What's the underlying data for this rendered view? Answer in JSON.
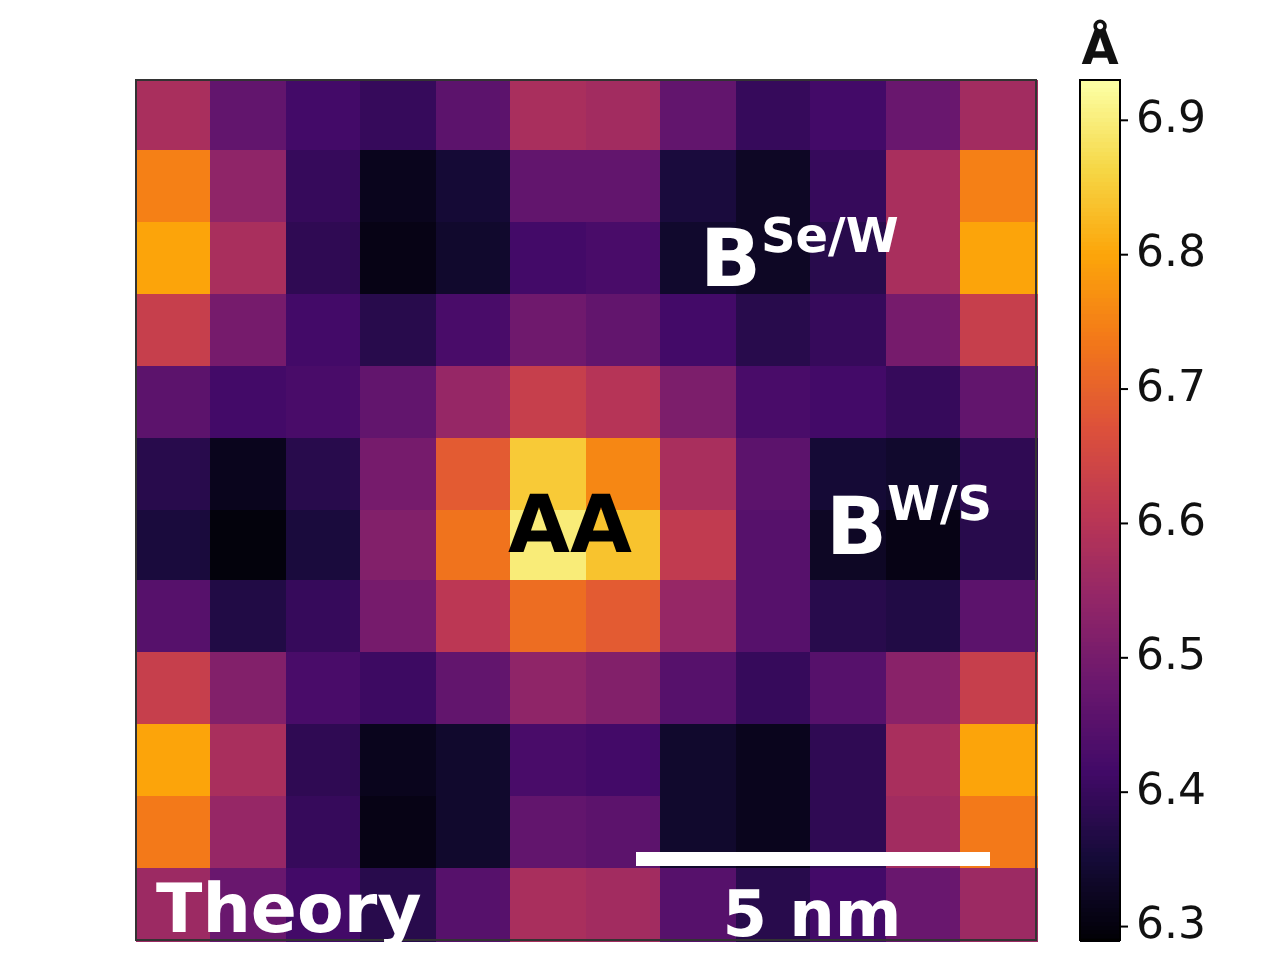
{
  "chart_data": {
    "type": "heatmap",
    "clabel": "Å",
    "clim": [
      6.29,
      6.93
    ],
    "cticks": [
      6.3,
      6.4,
      6.5,
      6.6,
      6.7,
      6.8,
      6.9
    ],
    "tick_labels": false,
    "categories": [
      null,
      null,
      null,
      null,
      null,
      null,
      null,
      null,
      null,
      null,
      null,
      null
    ],
    "y_categories": [
      null,
      null,
      null,
      null,
      null,
      null,
      null,
      null,
      null,
      null,
      null,
      null
    ],
    "cells": [
      [
        6.58,
        6.47,
        6.42,
        6.4,
        6.46,
        6.58,
        6.57,
        6.47,
        6.4,
        6.42,
        6.48,
        6.57
      ],
      [
        6.75,
        6.54,
        6.4,
        6.32,
        6.35,
        6.47,
        6.47,
        6.36,
        6.33,
        6.4,
        6.58,
        6.75
      ],
      [
        6.8,
        6.58,
        6.39,
        6.31,
        6.34,
        6.42,
        6.43,
        6.34,
        6.33,
        6.38,
        6.58,
        6.8
      ],
      [
        6.63,
        6.5,
        6.42,
        6.38,
        6.43,
        6.49,
        6.47,
        6.42,
        6.38,
        6.4,
        6.5,
        6.63
      ],
      [
        6.46,
        6.42,
        6.43,
        6.47,
        6.55,
        6.63,
        6.6,
        6.51,
        6.43,
        6.42,
        6.4,
        6.47
      ],
      [
        6.38,
        6.32,
        6.38,
        6.5,
        6.69,
        6.85,
        6.76,
        6.58,
        6.46,
        6.35,
        6.34,
        6.39
      ],
      [
        6.36,
        6.3,
        6.36,
        6.52,
        6.73,
        6.9,
        6.84,
        6.62,
        6.45,
        6.33,
        6.31,
        6.38
      ],
      [
        6.45,
        6.37,
        6.4,
        6.5,
        6.61,
        6.72,
        6.69,
        6.55,
        6.45,
        6.38,
        6.37,
        6.46
      ],
      [
        6.63,
        6.52,
        6.43,
        6.41,
        6.47,
        6.54,
        6.52,
        6.45,
        6.4,
        6.45,
        6.53,
        6.63
      ],
      [
        6.8,
        6.58,
        6.39,
        6.32,
        6.34,
        6.43,
        6.42,
        6.34,
        6.32,
        6.39,
        6.58,
        6.8
      ],
      [
        6.74,
        6.55,
        6.4,
        6.31,
        6.34,
        6.47,
        6.46,
        6.34,
        6.32,
        6.39,
        6.57,
        6.74
      ],
      [
        6.56,
        6.48,
        6.42,
        6.38,
        6.45,
        6.58,
        6.57,
        6.45,
        6.38,
        6.42,
        6.48,
        6.56
      ]
    ],
    "annotations": [
      "AA",
      "B$^{Se/W}$",
      "B$^{W/S}$",
      "Theory",
      "5 nm"
    ]
  }
}
